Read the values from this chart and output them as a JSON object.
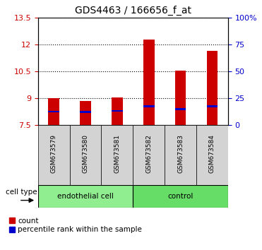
{
  "title": "GDS4463 / 166656_f_at",
  "samples": [
    "GSM673579",
    "GSM673580",
    "GSM673581",
    "GSM673582",
    "GSM673583",
    "GSM673584"
  ],
  "group_labels": [
    "endothelial cell",
    "control"
  ],
  "group_split": 3,
  "bar_bottom": 7.5,
  "red_tops": [
    9.0,
    8.85,
    9.05,
    12.25,
    10.55,
    11.65
  ],
  "blue_values": [
    8.25,
    8.22,
    8.28,
    8.55,
    8.38,
    8.55
  ],
  "ylim_min": 7.5,
  "ylim_max": 13.5,
  "yticks_left": [
    7.5,
    9.0,
    10.5,
    12.0,
    13.5
  ],
  "yticks_right": [
    0,
    25,
    50,
    75,
    100
  ],
  "yticks_right_labels": [
    "0",
    "25",
    "50",
    "75",
    "100%"
  ],
  "left_tick_color": "#cc0000",
  "right_tick_color": "#0000cc",
  "bar_color_red": "#cc0000",
  "bar_color_blue": "#0000cc",
  "bar_width": 0.35,
  "blue_bar_height": 0.1,
  "grid_color": "black",
  "cell_type_label": "cell type",
  "legend_count": "count",
  "legend_percentile": "percentile rank within the sample",
  "sample_area_color": "#d3d3d3",
  "group_box_color_light": "#90ee90",
  "group_box_color_bright": "#66dd66"
}
